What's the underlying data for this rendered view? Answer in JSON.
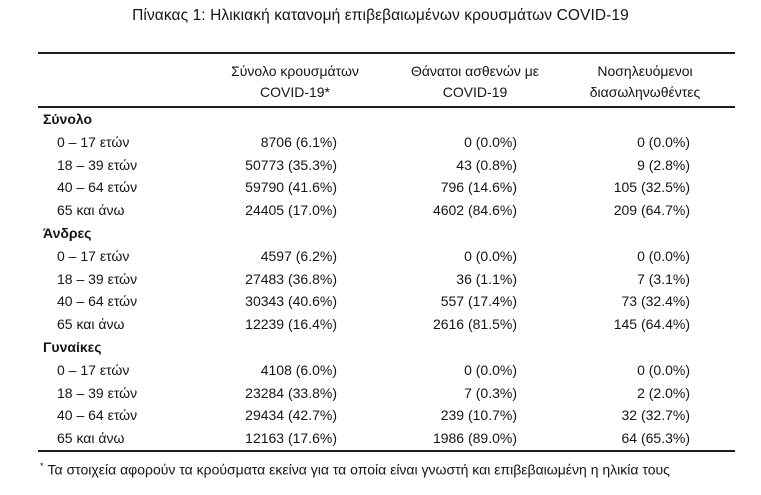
{
  "page": {
    "title": "Πίνακας 1: Ηλικιακή κατανομή επιβεβαιωμένων κρουσμάτων COVID-19",
    "text_color": "#14141c",
    "rule_color": "#1b1b22",
    "background": "#ffffff"
  },
  "table": {
    "columns": [
      {
        "id": "cases",
        "label_line1": "Σύνολο κρουσμάτων",
        "label_line2": "COVID-19*"
      },
      {
        "id": "deaths",
        "label_line1": "Θάνατοι ασθενών με",
        "label_line2": "COVID-19"
      },
      {
        "id": "intubated",
        "label_line1": "Νοσηλευόμενοι",
        "label_line2": "διασωληνωθέντες"
      }
    ],
    "sections": [
      {
        "label": "Σύνολο",
        "rows": [
          {
            "age": "0 – 17 ετών",
            "cases": "8706 (6.1%)",
            "deaths": "0 (0.0%)",
            "intubated": "0 (0.0%)"
          },
          {
            "age": "18 – 39 ετών",
            "cases": "50773 (35.3%)",
            "deaths": "43 (0.8%)",
            "intubated": "9 (2.8%)"
          },
          {
            "age": "40 – 64 ετών",
            "cases": "59790 (41.6%)",
            "deaths": "796 (14.6%)",
            "intubated": "105 (32.5%)"
          },
          {
            "age": "65 και άνω",
            "cases": "24405 (17.0%)",
            "deaths": "4602 (84.6%)",
            "intubated": "209 (64.7%)"
          }
        ]
      },
      {
        "label": "Άνδρες",
        "rows": [
          {
            "age": "0 – 17 ετών",
            "cases": "4597 (6.2%)",
            "deaths": "0 (0.0%)",
            "intubated": "0 (0.0%)"
          },
          {
            "age": "18 – 39 ετών",
            "cases": "27483 (36.8%)",
            "deaths": "36 (1.1%)",
            "intubated": "7 (3.1%)"
          },
          {
            "age": "40 – 64 ετών",
            "cases": "30343 (40.6%)",
            "deaths": "557 (17.4%)",
            "intubated": "73 (32.4%)"
          },
          {
            "age": "65 και άνω",
            "cases": "12239 (16.4%)",
            "deaths": "2616 (81.5%)",
            "intubated": "145 (64.4%)"
          }
        ]
      },
      {
        "label": "Γυναίκες",
        "rows": [
          {
            "age": "0 – 17 ετών",
            "cases": "4108 (6.0%)",
            "deaths": "0 (0.0%)",
            "intubated": "0 (0.0%)"
          },
          {
            "age": "18 – 39 ετών",
            "cases": "23284 (33.8%)",
            "deaths": "7 (0.3%)",
            "intubated": "2 (2.0%)"
          },
          {
            "age": "40 – 64 ετών",
            "cases": "29434 (42.7%)",
            "deaths": "239 (10.7%)",
            "intubated": "32 (32.7%)"
          },
          {
            "age": "65 και άνω",
            "cases": "12163 (17.6%)",
            "deaths": "1986 (89.0%)",
            "intubated": "64 (65.3%)"
          }
        ]
      }
    ],
    "footnote": {
      "marker": "*",
      "text": "Τα στοιχεία αφορούν τα κρούσματα εκείνα για τα οποία είναι γνωστή και επιβεβαιωμένη η ηλικία τους"
    }
  }
}
